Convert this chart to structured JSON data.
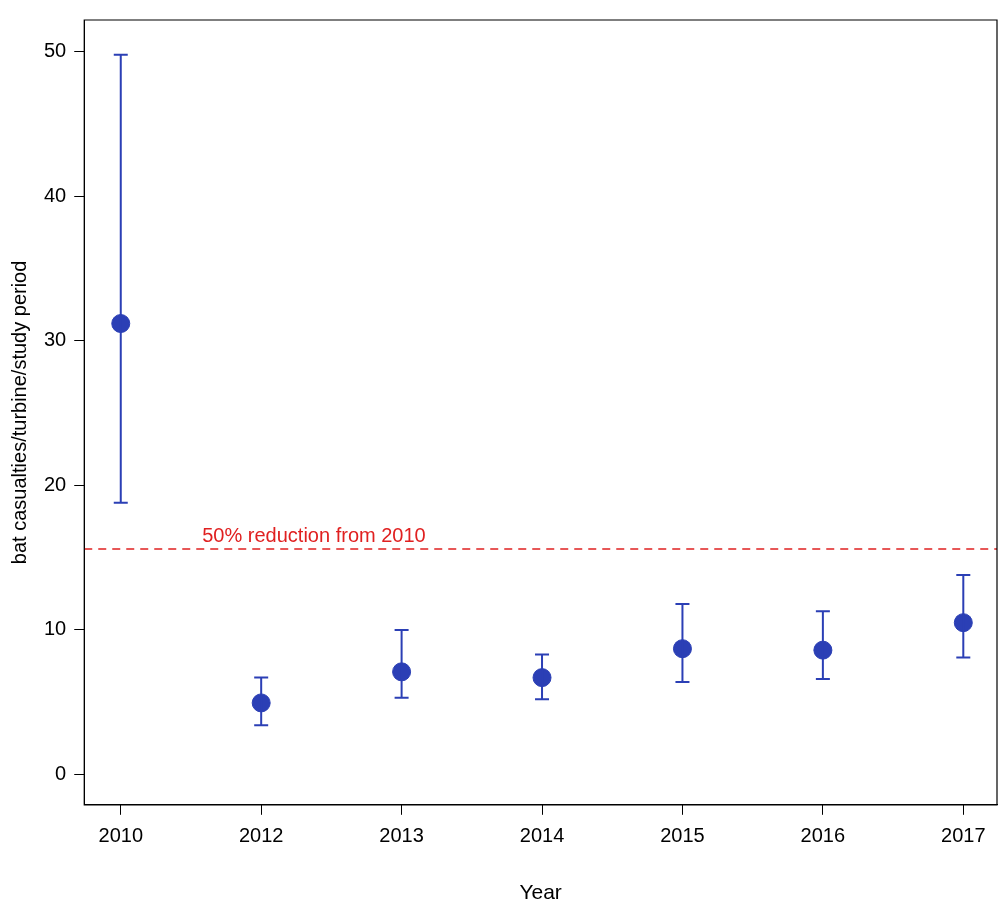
{
  "chart_data": {
    "type": "scatter",
    "xlabel": "Year",
    "ylabel": "bat casualties/turbine/study period",
    "categories": [
      "2010",
      "2012",
      "2013",
      "2014",
      "2015",
      "2016",
      "2017"
    ],
    "series": [
      {
        "color": "#2b3fb5",
        "values": [
          31.2,
          4.95,
          7.1,
          6.7,
          8.7,
          8.6,
          10.5
        ],
        "errors": [
          [
            18.8,
            49.8
          ],
          [
            3.4,
            6.7
          ],
          [
            5.3,
            10.0
          ],
          [
            5.2,
            8.3
          ],
          [
            6.4,
            11.8
          ],
          [
            6.6,
            11.3
          ],
          [
            8.1,
            13.8
          ]
        ]
      }
    ],
    "ylim": [
      -2.1,
      52.2
    ],
    "yticks": [
      0,
      10,
      20,
      30,
      40,
      50
    ],
    "grid": false,
    "legend": false,
    "marker": "circle",
    "ref_lines": [
      {
        "axis": "y",
        "value": 15.6,
        "label": "50% reduction from 2010",
        "color": "#e02020",
        "line_style": "dashed"
      }
    ]
  }
}
